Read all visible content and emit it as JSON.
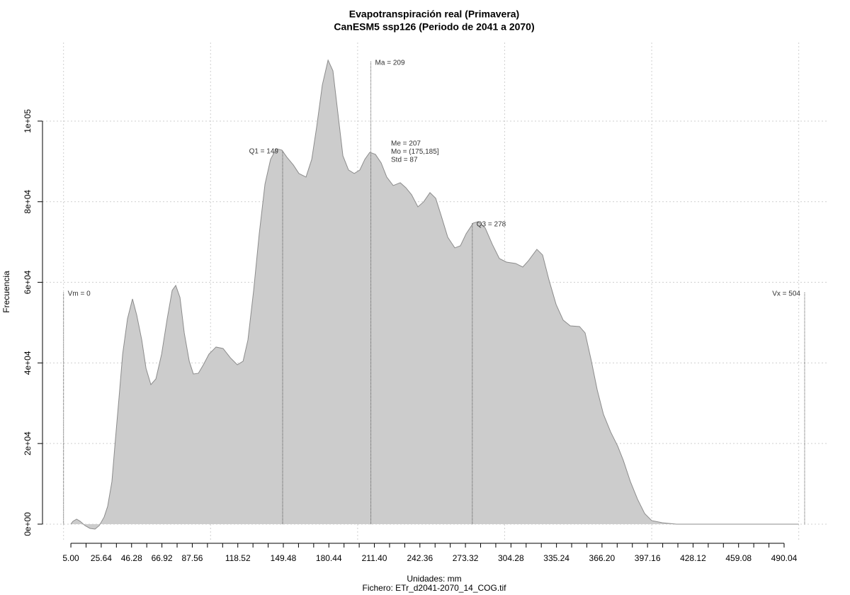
{
  "chart_data": {
    "type": "area",
    "title": "Evapotranspiración real (Primavera)",
    "subtitle": "CanESM5 ssp126 (Periodo de 2041 a 2070)",
    "xlabel": "Unidades: mm",
    "caption": "Fichero: ETr_d2041-2070_14_COG.tif",
    "ylabel": "Frecuencia",
    "color": "#cccccc",
    "line_color": "#8c8c8c",
    "grid": true,
    "xlim": [
      -14.3,
      520.4
    ],
    "ylim": [
      -4400,
      119500
    ],
    "xticks": [
      {
        "value": 5,
        "label": "5.00"
      },
      {
        "value": 25.64,
        "label": "25.64"
      },
      {
        "value": 46.28,
        "label": "46.28"
      },
      {
        "value": 66.92,
        "label": "66.92"
      },
      {
        "value": 87.56,
        "label": "87.56"
      },
      {
        "value": 118.52,
        "label": "118.52"
      },
      {
        "value": 149.48,
        "label": "149.48"
      },
      {
        "value": 180.44,
        "label": "180.44"
      },
      {
        "value": 211.4,
        "label": "211.40"
      },
      {
        "value": 242.36,
        "label": "242.36"
      },
      {
        "value": 273.32,
        "label": "273.32"
      },
      {
        "value": 304.28,
        "label": "304.28"
      },
      {
        "value": 335.24,
        "label": "335.24"
      },
      {
        "value": 366.2,
        "label": "366.20"
      },
      {
        "value": 397.16,
        "label": "397.16"
      },
      {
        "value": 428.12,
        "label": "428.12"
      },
      {
        "value": 459.08,
        "label": "459.08"
      },
      {
        "value": 490.04,
        "label": "490.04"
      }
    ],
    "xminor_ticks": [
      15.32,
      35.96,
      56.6,
      77.24,
      97.88,
      108.2,
      128.84,
      139.16,
      159.8,
      170.12,
      190.76,
      201.08,
      221.72,
      232.04,
      252.68,
      263,
      283.64,
      293.96,
      314.6,
      324.92,
      345.56,
      355.88,
      376.52,
      386.84,
      407.48,
      417.8,
      438.44,
      448.76,
      469.4,
      479.72
    ],
    "xgrid": [
      0,
      100,
      200,
      300,
      400,
      500
    ],
    "yticks": [
      {
        "value": 0,
        "label": "0e+00"
      },
      {
        "value": 20000,
        "label": "2e+04"
      },
      {
        "value": 40000,
        "label": "4e+04"
      },
      {
        "value": 60000,
        "label": "6e+04"
      },
      {
        "value": 80000,
        "label": "8e+04"
      },
      {
        "value": 100000,
        "label": "1e+05"
      }
    ],
    "x": [
      5,
      6.4,
      8.9,
      11.3,
      14.6,
      18,
      21.4,
      24.3,
      27.6,
      30,
      32.9,
      35.3,
      37.8,
      40.2,
      43.5,
      46.9,
      49.8,
      53.2,
      56.1,
      59.4,
      62.8,
      66.7,
      70.5,
      73.9,
      76.3,
      79.2,
      82.1,
      85.5,
      88.3,
      91.7,
      95.1,
      98.9,
      103.7,
      108.5,
      113.4,
      118.2,
      122.1,
      125.4,
      129.3,
      133.1,
      137,
      140.8,
      144.7,
      148.5,
      151.9,
      156.3,
      160.1,
      164.9,
      168.8,
      172.1,
      176,
      179.9,
      183.2,
      186.6,
      190,
      193.8,
      197.7,
      201.5,
      204.9,
      208.3,
      212.1,
      216,
      219.8,
      224.2,
      229,
      232.8,
      236.7,
      241,
      244.9,
      249.2,
      253.1,
      256.9,
      261.3,
      266.1,
      269.9,
      273.8,
      278.6,
      282,
      286.8,
      291.6,
      296.4,
      301.2,
      307.5,
      312.3,
      316.2,
      321.9,
      325.8,
      330.1,
      335,
      339.8,
      344.6,
      350.9,
      354.7,
      359,
      362.9,
      367.2,
      372.1,
      376.9,
      380.7,
      385.5,
      390.4,
      395.2,
      400,
      407.2,
      416.8,
      428.9,
      448.2,
      472.2,
      500
    ],
    "values": [
      0,
      703,
      1230,
      703,
      -352,
      -1054,
      -1230,
      -352,
      1758,
      4394,
      10545,
      21090,
      31635,
      42180,
      50968,
      55889,
      51846,
      45695,
      38665,
      34623,
      36029,
      42180,
      50968,
      57998,
      59228,
      56240,
      47453,
      40423,
      37259,
      37435,
      39544,
      42180,
      43938,
      43586,
      41301,
      39544,
      40423,
      45695,
      57998,
      72058,
      84360,
      90511,
      93148,
      92796,
      91038,
      89105,
      86996,
      86118,
      90511,
      98420,
      108965,
      115116,
      112480,
      101935,
      91390,
      87875,
      86996,
      87875,
      90511,
      92269,
      91741,
      89632,
      86118,
      84008,
      84711,
      83481,
      81724,
      78736,
      79966,
      82251,
      80845,
      76451,
      71179,
      68542,
      69070,
      72058,
      74694,
      75045,
      73464,
      69421,
      65906,
      65027,
      64676,
      63797,
      65379,
      68191,
      66785,
      60634,
      54483,
      50616,
      49210,
      49035,
      47453,
      40423,
      33393,
      27241,
      22848,
      19333,
      15818,
      10545,
      6151,
      2636,
      879,
      351,
      0,
      0,
      0,
      0,
      0
    ],
    "annotations": [
      {
        "text": "Vm = 0",
        "x": 0,
        "y": 57500
      },
      {
        "text": "Q1 = 149",
        "x": 149,
        "y": 92796
      },
      {
        "text": "Ma = 209",
        "x": 209,
        "y": 114800
      },
      {
        "text": "Q3 = 278",
        "x": 278,
        "y": 74694
      },
      {
        "text": "Vx = 504",
        "x": 504,
        "y": 57500
      }
    ],
    "stats": [
      "Me = 207",
      "Mo = (175,185]",
      "Std = 87"
    ]
  }
}
